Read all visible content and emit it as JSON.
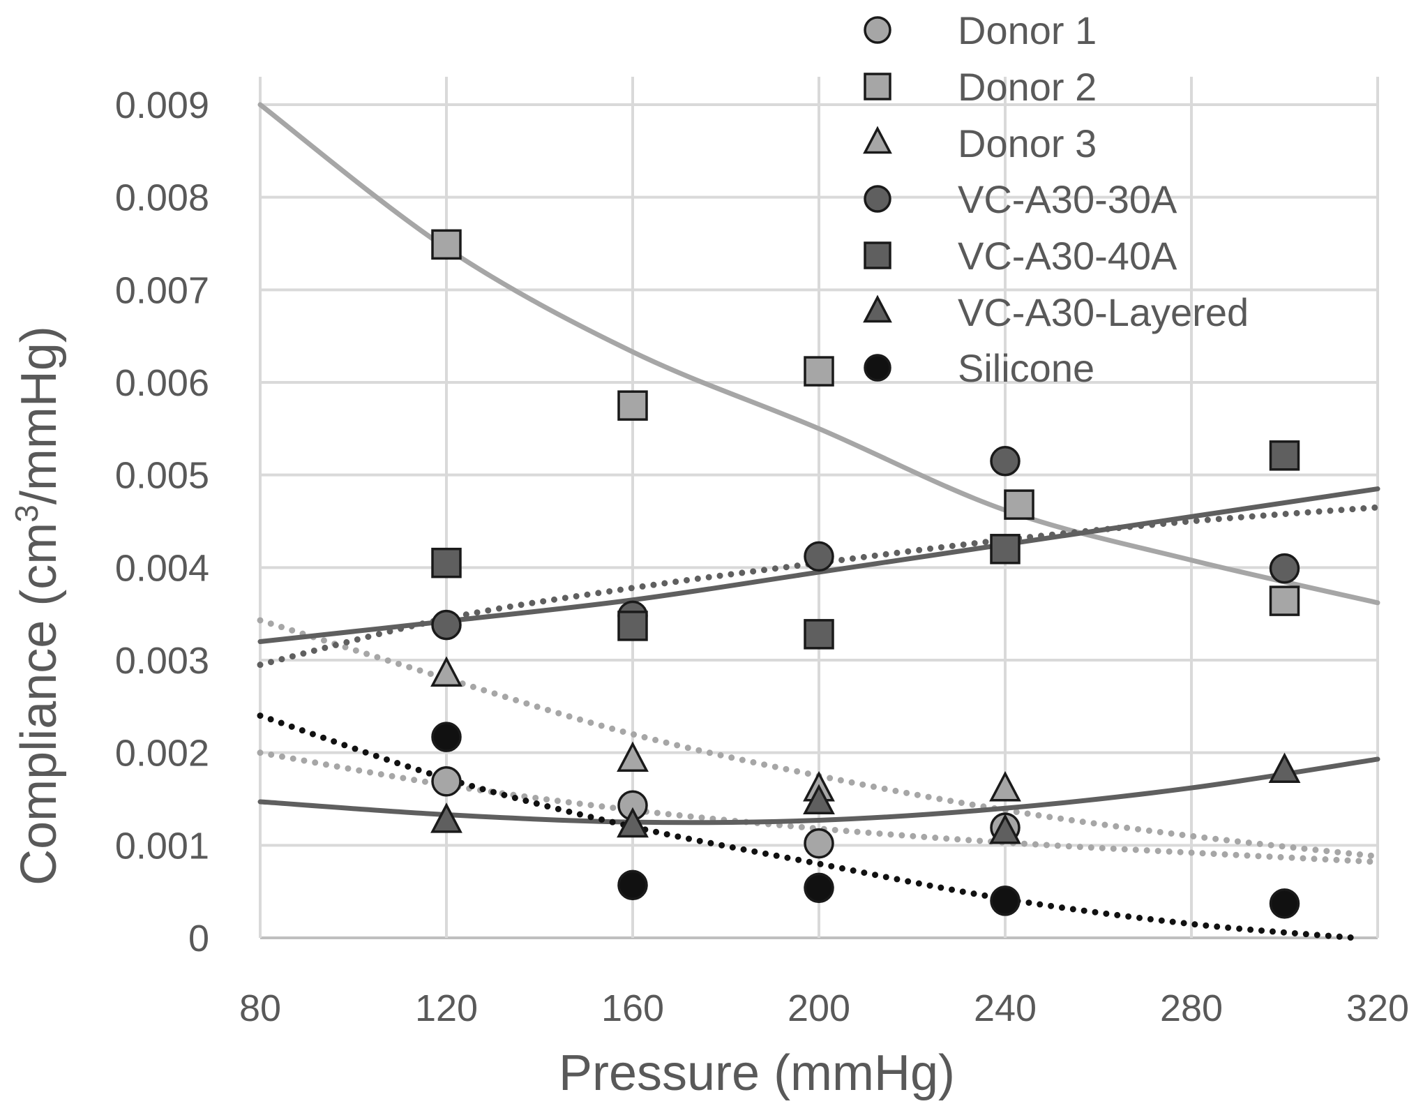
{
  "chart_data": {
    "type": "scatter",
    "title": "",
    "xlabel": "Pressure (mmHg)",
    "ylabel_parts": [
      "Compliance (cm",
      "3",
      "/mmHg)"
    ],
    "xlim": [
      80,
      320
    ],
    "ylim": [
      0,
      0.009
    ],
    "xticks": [
      80,
      120,
      160,
      200,
      240,
      280,
      320
    ],
    "yticks": [
      "0",
      "0.001",
      "0.002",
      "0.003",
      "0.004",
      "0.005",
      "0.006",
      "0.007",
      "0.008",
      "0.009"
    ],
    "grid": true,
    "legend_position": "top-right",
    "colors": {
      "light": "#a6a6a6",
      "dark": "#5f5f5f",
      "black": "#111111",
      "grid": "#d9d9d9",
      "text": "#595959"
    },
    "series": [
      {
        "name": "Donor 1",
        "marker": "circle",
        "color": "#a6a6a6",
        "points": [
          [
            120,
            0.00169
          ],
          [
            160,
            0.00143
          ],
          [
            200,
            0.00102
          ],
          [
            240,
            0.00119
          ]
        ],
        "trend": {
          "style": "dotted",
          "color": "#a6a6a6",
          "points": [
            [
              80,
              0.002
            ],
            [
              120,
              0.00165
            ],
            [
              160,
              0.00138
            ],
            [
              200,
              0.00118
            ],
            [
              240,
              0.00103
            ],
            [
              280,
              0.00092
            ],
            [
              320,
              0.00082
            ]
          ]
        }
      },
      {
        "name": "Donor 2",
        "marker": "square",
        "color": "#a6a6a6",
        "points": [
          [
            120,
            0.00749
          ],
          [
            160,
            0.00575
          ],
          [
            200,
            0.00612
          ],
          [
            243,
            0.00468
          ],
          [
            300,
            0.00364
          ]
        ],
        "trend": {
          "style": "solid",
          "color": "#a6a6a6",
          "points": [
            [
              80,
              0.009
            ],
            [
              120,
              0.00745
            ],
            [
              160,
              0.00633
            ],
            [
              200,
              0.0055
            ],
            [
              240,
              0.00462
            ],
            [
              280,
              0.00408
            ],
            [
              320,
              0.00362
            ]
          ]
        }
      },
      {
        "name": "Donor 3",
        "marker": "triangle",
        "color": "#a6a6a6",
        "points": [
          [
            120,
            0.00284
          ],
          [
            160,
            0.00192
          ],
          [
            200,
            0.0016
          ],
          [
            240,
            0.0016
          ]
        ],
        "trend": {
          "style": "dotted",
          "color": "#a6a6a6",
          "points": [
            [
              80,
              0.00343
            ],
            [
              120,
              0.0028
            ],
            [
              160,
              0.0022
            ],
            [
              200,
              0.00175
            ],
            [
              240,
              0.00138
            ],
            [
              280,
              0.0011
            ],
            [
              320,
              0.00088
            ]
          ]
        }
      },
      {
        "name": "VC-A30-30A",
        "marker": "circle",
        "color": "#5f5f5f",
        "points": [
          [
            120,
            0.00338
          ],
          [
            160,
            0.00348
          ],
          [
            200,
            0.00412
          ],
          [
            240,
            0.00515
          ],
          [
            300,
            0.00399
          ]
        ],
        "trend": {
          "style": "dotted",
          "color": "#5f5f5f",
          "points": [
            [
              80,
              0.00295
            ],
            [
              120,
              0.00345
            ],
            [
              160,
              0.00378
            ],
            [
              200,
              0.00405
            ],
            [
              240,
              0.0043
            ],
            [
              280,
              0.0045
            ],
            [
              320,
              0.00465
            ]
          ]
        }
      },
      {
        "name": "VC-A30-40A",
        "marker": "square",
        "color": "#5f5f5f",
        "points": [
          [
            120,
            0.00405
          ],
          [
            160,
            0.00337
          ],
          [
            200,
            0.00328
          ],
          [
            240,
            0.0042
          ],
          [
            300,
            0.00521
          ]
        ],
        "trend": {
          "style": "solid",
          "color": "#5f5f5f",
          "points": [
            [
              80,
              0.0032
            ],
            [
              120,
              0.00342
            ],
            [
              160,
              0.00365
            ],
            [
              200,
              0.00395
            ],
            [
              240,
              0.00425
            ],
            [
              280,
              0.00455
            ],
            [
              320,
              0.00485
            ]
          ]
        }
      },
      {
        "name": "VC-A30-Layered",
        "marker": "triangle",
        "color": "#5f5f5f",
        "points": [
          [
            120,
            0.00126
          ],
          [
            160,
            0.00121
          ],
          [
            200,
            0.00146
          ],
          [
            240,
            0.00114
          ],
          [
            300,
            0.0018
          ]
        ],
        "trend": {
          "style": "solid",
          "color": "#5f5f5f",
          "points": [
            [
              80,
              0.00147
            ],
            [
              120,
              0.00133
            ],
            [
              160,
              0.00125
            ],
            [
              200,
              0.00127
            ],
            [
              240,
              0.0014
            ],
            [
              280,
              0.00162
            ],
            [
              320,
              0.00193
            ]
          ]
        }
      },
      {
        "name": "Silicone",
        "marker": "circle",
        "color": "#111111",
        "points": [
          [
            120,
            0.00217
          ],
          [
            160,
            0.00057
          ],
          [
            200,
            0.00054
          ],
          [
            240,
            0.0004
          ],
          [
            300,
            0.00037
          ]
        ],
        "trend": {
          "style": "dotted",
          "color": "#111111",
          "points": [
            [
              80,
              0.0024
            ],
            [
              120,
              0.00172
            ],
            [
              160,
              0.0012
            ],
            [
              200,
              0.0008
            ],
            [
              240,
              0.00042
            ],
            [
              280,
              0.00015
            ],
            [
              315,
              0.0
            ]
          ]
        }
      }
    ]
  }
}
